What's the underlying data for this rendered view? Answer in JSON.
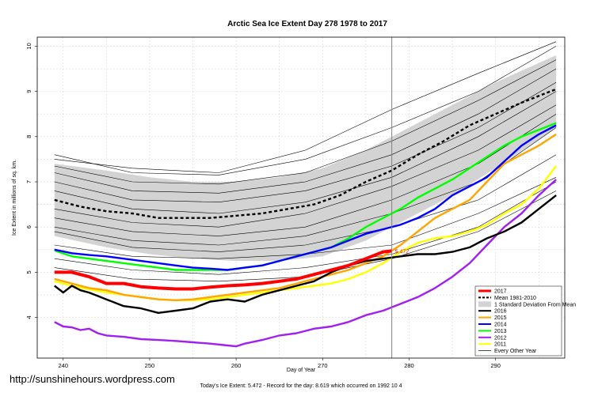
{
  "watermark": "http://sunshinehours.wordpress.com",
  "chart_data": {
    "type": "line",
    "title": "Arctic Sea Ice Extent Day 278 1978 to 2017",
    "xlabel": "Day of Year",
    "ylabel": "Ice Extent in millions of sq. km.",
    "footnote": "Today's Ice Extent: 5.472  -  Record for the day: 8.619 which occurred on 1992 10 4",
    "xlim": [
      237,
      298
    ],
    "ylim": [
      3.1,
      10.2
    ],
    "x_ticks": [
      240,
      250,
      260,
      270,
      280,
      290
    ],
    "y_ticks": [
      4,
      5,
      6,
      7,
      8,
      9,
      10
    ],
    "grid": true,
    "legend_position": "bottom-right",
    "current_day": 278,
    "current_value_label": "5.472",
    "colors": {
      "y2017": "#ff0000",
      "mean": "#000000",
      "std": "#d3d3d3",
      "y2016": "#000000",
      "y2015": "#ffa500",
      "y2014": "#0000ff",
      "y2013": "#00ff00",
      "y2012": "#a020f0",
      "y2011": "#ffff00",
      "other": "#000000",
      "ref_line": "#808080"
    },
    "std_band": {
      "x": [
        239,
        245,
        250,
        255,
        260,
        265,
        270,
        275,
        280,
        285,
        290,
        297
      ],
      "upper": [
        7.4,
        7.25,
        7.1,
        7.0,
        7.0,
        7.1,
        7.3,
        7.7,
        8.2,
        8.7,
        9.2,
        9.8
      ],
      "lower": [
        5.8,
        5.55,
        5.4,
        5.3,
        5.25,
        5.25,
        5.35,
        5.7,
        6.2,
        6.7,
        7.3,
        8.2
      ]
    },
    "legend": [
      "2017",
      "Mean 1981-2010",
      "1 Standard Deviation From Mean",
      "2016",
      "2015",
      "2014",
      "2013",
      "2012",
      "2011",
      "Every Other Year"
    ],
    "series": [
      {
        "name": "Mean 1981-2010",
        "x": [
          239,
          242,
          245,
          248,
          251,
          254,
          257,
          260,
          263,
          266,
          269,
          272,
          275,
          278,
          281,
          284,
          287,
          290,
          293,
          297
        ],
        "values": [
          6.6,
          6.45,
          6.35,
          6.3,
          6.2,
          6.2,
          6.2,
          6.25,
          6.3,
          6.4,
          6.5,
          6.7,
          7.0,
          7.25,
          7.6,
          7.9,
          8.25,
          8.5,
          8.75,
          9.05
        ]
      },
      {
        "name": "2017",
        "x": [
          239,
          241,
          243,
          245,
          247,
          249,
          251,
          253,
          255,
          257,
          259,
          261,
          263,
          265,
          267,
          269,
          271,
          273,
          275,
          277,
          278
        ],
        "values": [
          5.0,
          5.0,
          4.9,
          4.75,
          4.75,
          4.68,
          4.65,
          4.63,
          4.63,
          4.67,
          4.7,
          4.72,
          4.75,
          4.8,
          4.85,
          4.95,
          5.05,
          5.15,
          5.3,
          5.45,
          5.472
        ]
      },
      {
        "name": "2016",
        "x": [
          239,
          240,
          241,
          242,
          243,
          245,
          247,
          249,
          251,
          253,
          255,
          257,
          259,
          261,
          263,
          265,
          267,
          269,
          271,
          273,
          275,
          277,
          279,
          281,
          283,
          285,
          287,
          289,
          291,
          293,
          295,
          297
        ],
        "values": [
          4.7,
          4.55,
          4.7,
          4.6,
          4.55,
          4.4,
          4.25,
          4.2,
          4.1,
          4.15,
          4.2,
          4.35,
          4.4,
          4.35,
          4.5,
          4.6,
          4.7,
          4.8,
          5.0,
          5.15,
          5.25,
          5.3,
          5.35,
          5.4,
          5.4,
          5.45,
          5.55,
          5.75,
          5.9,
          6.1,
          6.4,
          6.7
        ]
      },
      {
        "name": "2015",
        "x": [
          239,
          241,
          243,
          245,
          247,
          249,
          251,
          253,
          255,
          257,
          259,
          261,
          263,
          265,
          267,
          269,
          271,
          273,
          275,
          277,
          279,
          281,
          283,
          285,
          287,
          289,
          291,
          293,
          295,
          297
        ],
        "values": [
          4.85,
          4.75,
          4.65,
          4.6,
          4.5,
          4.45,
          4.4,
          4.38,
          4.4,
          4.45,
          4.5,
          4.55,
          4.6,
          4.65,
          4.75,
          4.85,
          4.95,
          5.05,
          5.2,
          5.35,
          5.6,
          5.9,
          6.2,
          6.4,
          6.6,
          7.0,
          7.4,
          7.6,
          7.8,
          8.05
        ]
      },
      {
        "name": "2014",
        "x": [
          239,
          241,
          243,
          245,
          247,
          249,
          251,
          253,
          255,
          257,
          259,
          261,
          263,
          265,
          267,
          269,
          271,
          273,
          275,
          277,
          279,
          281,
          283,
          285,
          287,
          289,
          291,
          293,
          295,
          297
        ],
        "values": [
          5.5,
          5.42,
          5.38,
          5.35,
          5.3,
          5.25,
          5.2,
          5.15,
          5.1,
          5.08,
          5.05,
          5.1,
          5.15,
          5.25,
          5.35,
          5.45,
          5.55,
          5.7,
          5.85,
          5.95,
          6.05,
          6.2,
          6.4,
          6.7,
          6.9,
          7.1,
          7.45,
          7.8,
          8.05,
          8.25
        ]
      },
      {
        "name": "2013",
        "x": [
          239,
          241,
          243,
          245,
          247,
          249,
          251,
          253,
          255,
          257,
          259,
          261,
          263,
          265,
          267,
          269,
          271,
          273,
          275,
          277,
          279,
          281,
          283,
          285,
          287,
          289,
          291,
          293,
          295,
          297
        ],
        "values": [
          5.48,
          5.35,
          5.3,
          5.25,
          5.2,
          5.15,
          5.1,
          5.05,
          5.05,
          5.05,
          5.05,
          5.1,
          5.15,
          5.25,
          5.35,
          5.45,
          5.55,
          5.75,
          6.0,
          6.2,
          6.4,
          6.65,
          6.85,
          7.05,
          7.3,
          7.55,
          7.8,
          8.0,
          8.15,
          8.3
        ]
      },
      {
        "name": "2012",
        "x": [
          239,
          240,
          241,
          242,
          243,
          244,
          245,
          247,
          249,
          251,
          253,
          255,
          257,
          259,
          260,
          261,
          263,
          265,
          267,
          269,
          271,
          273,
          275,
          277,
          279,
          281,
          283,
          285,
          287,
          289,
          291,
          293,
          295,
          297
        ],
        "values": [
          3.9,
          3.8,
          3.78,
          3.72,
          3.75,
          3.65,
          3.6,
          3.57,
          3.52,
          3.5,
          3.48,
          3.45,
          3.42,
          3.38,
          3.36,
          3.42,
          3.5,
          3.6,
          3.65,
          3.75,
          3.8,
          3.9,
          4.05,
          4.15,
          4.3,
          4.45,
          4.65,
          4.9,
          5.2,
          5.6,
          6.0,
          6.3,
          6.7,
          7.05
        ]
      },
      {
        "name": "2011",
        "x": [
          239,
          241,
          243,
          245,
          247,
          249,
          251,
          253,
          255,
          257,
          259,
          261,
          263,
          265,
          267,
          269,
          271,
          273,
          275,
          277,
          279,
          281,
          283,
          285,
          287,
          289,
          291,
          293,
          295,
          297
        ],
        "values": [
          4.8,
          4.7,
          4.62,
          4.55,
          4.5,
          4.45,
          4.4,
          4.38,
          4.38,
          4.4,
          4.45,
          4.5,
          4.55,
          4.6,
          4.65,
          4.7,
          4.75,
          4.85,
          5.0,
          5.2,
          5.45,
          5.65,
          5.75,
          5.8,
          5.9,
          6.05,
          6.3,
          6.5,
          6.85,
          7.35
        ]
      }
    ],
    "other_years": [
      {
        "name": "",
        "x": [
          239,
          248,
          258,
          268,
          278,
          288,
          297
        ],
        "values": [
          7.6,
          7.2,
          7.15,
          7.5,
          8.2,
          9.0,
          10.0
        ]
      },
      {
        "name": "",
        "x": [
          239,
          248,
          258,
          268,
          278,
          288,
          297
        ],
        "values": [
          7.5,
          7.3,
          7.2,
          7.7,
          8.6,
          9.4,
          10.1
        ]
      },
      {
        "name": "",
        "x": [
          239,
          248,
          258,
          268,
          278,
          288,
          297
        ],
        "values": [
          7.35,
          7.0,
          6.95,
          7.2,
          7.9,
          8.8,
          9.7
        ]
      },
      {
        "name": "",
        "x": [
          239,
          248,
          258,
          268,
          278,
          288,
          297
        ],
        "values": [
          7.2,
          6.8,
          6.75,
          7.0,
          7.6,
          8.5,
          9.5
        ]
      },
      {
        "name": "",
        "x": [
          239,
          248,
          258,
          268,
          278,
          288,
          297
        ],
        "values": [
          7.0,
          6.6,
          6.55,
          6.8,
          7.35,
          8.2,
          9.2
        ]
      },
      {
        "name": "",
        "x": [
          239,
          248,
          258,
          268,
          278,
          288,
          297
        ],
        "values": [
          6.8,
          6.4,
          6.3,
          6.55,
          7.1,
          8.0,
          9.0
        ]
      },
      {
        "name": "",
        "x": [
          239,
          248,
          258,
          268,
          278,
          288,
          297
        ],
        "values": [
          6.4,
          6.1,
          6.0,
          6.3,
          6.9,
          7.7,
          8.7
        ]
      },
      {
        "name": "",
        "x": [
          239,
          248,
          258,
          268,
          278,
          288,
          297
        ],
        "values": [
          6.2,
          5.9,
          5.8,
          6.0,
          6.6,
          7.4,
          8.5
        ]
      },
      {
        "name": "",
        "x": [
          239,
          248,
          258,
          268,
          278,
          288,
          297
        ],
        "values": [
          6.0,
          5.7,
          5.6,
          5.8,
          6.3,
          7.0,
          8.2
        ]
      },
      {
        "name": "",
        "x": [
          239,
          248,
          258,
          268,
          278,
          288,
          297
        ],
        "values": [
          5.9,
          5.55,
          5.45,
          5.6,
          6.0,
          6.6,
          7.6
        ]
      },
      {
        "name": "",
        "x": [
          239,
          248,
          258,
          268,
          278,
          288,
          297
        ],
        "values": [
          5.6,
          5.35,
          5.3,
          5.4,
          5.6,
          6.3,
          7.1
        ]
      },
      {
        "name": "",
        "x": [
          239,
          248,
          258,
          268,
          278,
          288,
          297
        ],
        "values": [
          5.3,
          5.05,
          4.95,
          5.1,
          5.4,
          6.0,
          7.0
        ]
      },
      {
        "name": "",
        "x": [
          239,
          248,
          258,
          268,
          278,
          288,
          297
        ],
        "values": [
          5.1,
          4.85,
          4.8,
          4.9,
          5.3,
          5.9,
          6.8
        ]
      }
    ]
  }
}
